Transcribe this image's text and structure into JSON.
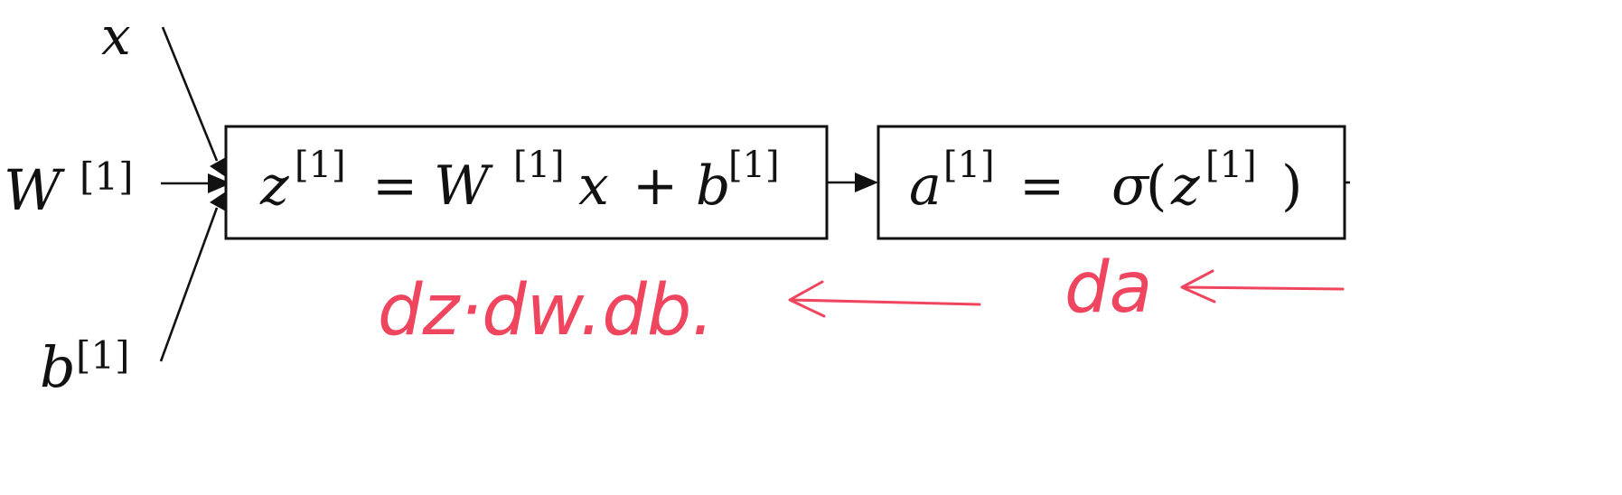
{
  "inputs": {
    "x": "x",
    "W_base": "W",
    "W_sup": "[1]",
    "b_base": "b",
    "b_sup": "[1]"
  },
  "box1": {
    "z": "z",
    "z_sup": "[1]",
    "eq": "=",
    "W": "W",
    "W_sup": "[1]",
    "x": "x",
    "plus": "+",
    "b": "b",
    "b_sup": "[1]"
  },
  "box2": {
    "a": "a",
    "a_sup": "[1]",
    "eq": "=",
    "sigma": "σ",
    "open": "(",
    "z": "z",
    "z_sup": "[1]",
    "close": ")"
  },
  "annotations": {
    "gradients_left": "dz·dw.db.",
    "gradient_right": "da"
  },
  "colors": {
    "ink": "#111111",
    "annotation": "#f0455e"
  }
}
